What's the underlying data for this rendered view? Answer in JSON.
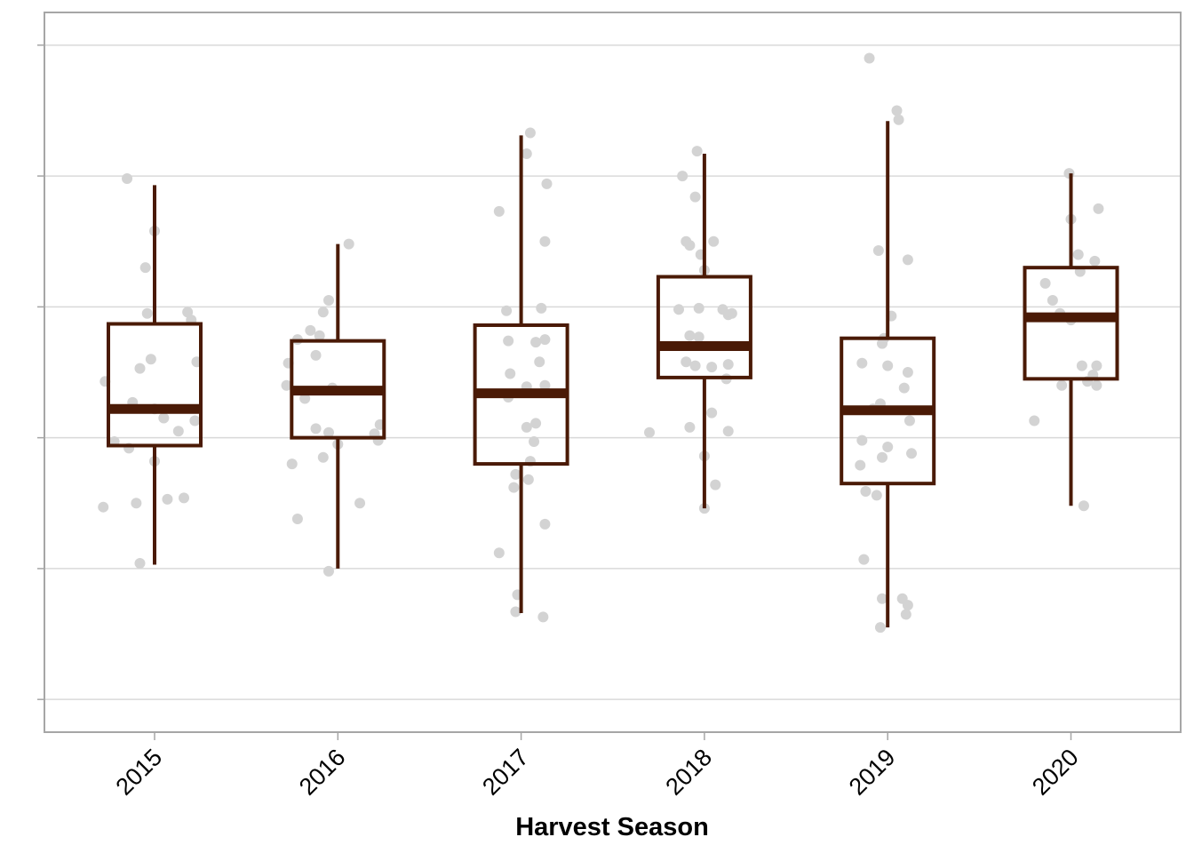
{
  "chart_data": {
    "type": "box",
    "title": "",
    "xlabel": "Harvest Season",
    "ylabel": "",
    "ylim": [
      -0.25,
      5.25
    ],
    "y_gridlines": [
      0,
      1,
      2,
      3,
      4,
      5
    ],
    "y_tick_labels_shown": false,
    "grid": "horizontal",
    "colors": {
      "box": "#4a1a06",
      "points": "#d3d3d3",
      "grid": "#d9d9d9",
      "frame": "#a6a6a6"
    },
    "categories": [
      "2015",
      "2016",
      "2017",
      "2018",
      "2019",
      "2020"
    ],
    "boxes": [
      {
        "category": "2015",
        "whisker_low": 1.03,
        "q1": 1.94,
        "median": 2.22,
        "q3": 2.87,
        "whisker_high": 3.93
      },
      {
        "category": "2016",
        "whisker_low": 1.0,
        "q1": 2.0,
        "median": 2.36,
        "q3": 2.74,
        "whisker_high": 3.48
      },
      {
        "category": "2017",
        "whisker_low": 0.66,
        "q1": 1.8,
        "median": 2.34,
        "q3": 2.86,
        "whisker_high": 4.31
      },
      {
        "category": "2018",
        "whisker_low": 1.46,
        "q1": 2.46,
        "median": 2.7,
        "q3": 3.23,
        "whisker_high": 4.17
      },
      {
        "category": "2019",
        "whisker_low": 0.55,
        "q1": 1.65,
        "median": 2.21,
        "q3": 2.76,
        "whisker_high": 4.42
      },
      {
        "category": "2020",
        "whisker_low": 1.48,
        "q1": 2.45,
        "median": 2.92,
        "q3": 3.3,
        "whisker_high": 4.02
      }
    ],
    "points": [
      {
        "category": "2015",
        "offset": -0.15,
        "y": 3.98
      },
      {
        "category": "2015",
        "offset": 0.0,
        "y": 3.58
      },
      {
        "category": "2015",
        "offset": -0.05,
        "y": 3.3
      },
      {
        "category": "2015",
        "offset": -0.04,
        "y": 2.95
      },
      {
        "category": "2015",
        "offset": 0.18,
        "y": 2.96
      },
      {
        "category": "2015",
        "offset": 0.2,
        "y": 2.9
      },
      {
        "category": "2015",
        "offset": -0.02,
        "y": 2.6
      },
      {
        "category": "2015",
        "offset": 0.23,
        "y": 2.58
      },
      {
        "category": "2015",
        "offset": -0.08,
        "y": 2.53
      },
      {
        "category": "2015",
        "offset": -0.27,
        "y": 2.43
      },
      {
        "category": "2015",
        "offset": -0.12,
        "y": 2.27
      },
      {
        "category": "2015",
        "offset": 0.0,
        "y": 2.22
      },
      {
        "category": "2015",
        "offset": 0.05,
        "y": 2.15
      },
      {
        "category": "2015",
        "offset": 0.22,
        "y": 2.13
      },
      {
        "category": "2015",
        "offset": 0.13,
        "y": 2.05
      },
      {
        "category": "2015",
        "offset": -0.22,
        "y": 1.97
      },
      {
        "category": "2015",
        "offset": -0.14,
        "y": 1.92
      },
      {
        "category": "2015",
        "offset": 0.0,
        "y": 1.82
      },
      {
        "category": "2015",
        "offset": 0.07,
        "y": 1.53
      },
      {
        "category": "2015",
        "offset": 0.16,
        "y": 1.54
      },
      {
        "category": "2015",
        "offset": -0.1,
        "y": 1.5
      },
      {
        "category": "2015",
        "offset": -0.28,
        "y": 1.47
      },
      {
        "category": "2015",
        "offset": -0.08,
        "y": 1.04
      },
      {
        "category": "2016",
        "offset": 0.06,
        "y": 3.48
      },
      {
        "category": "2016",
        "offset": -0.05,
        "y": 3.05
      },
      {
        "category": "2016",
        "offset": -0.08,
        "y": 2.96
      },
      {
        "category": "2016",
        "offset": -0.15,
        "y": 2.82
      },
      {
        "category": "2016",
        "offset": -0.22,
        "y": 2.75
      },
      {
        "category": "2016",
        "offset": -0.1,
        "y": 2.78
      },
      {
        "category": "2016",
        "offset": -0.12,
        "y": 2.63
      },
      {
        "category": "2016",
        "offset": -0.27,
        "y": 2.57
      },
      {
        "category": "2016",
        "offset": -0.28,
        "y": 2.4
      },
      {
        "category": "2016",
        "offset": -0.03,
        "y": 2.38
      },
      {
        "category": "2016",
        "offset": -0.18,
        "y": 2.3
      },
      {
        "category": "2016",
        "offset": 0.23,
        "y": 2.1
      },
      {
        "category": "2016",
        "offset": -0.12,
        "y": 2.07
      },
      {
        "category": "2016",
        "offset": -0.05,
        "y": 2.04
      },
      {
        "category": "2016",
        "offset": 0.2,
        "y": 2.03
      },
      {
        "category": "2016",
        "offset": 0.22,
        "y": 1.98
      },
      {
        "category": "2016",
        "offset": 0.0,
        "y": 1.95
      },
      {
        "category": "2016",
        "offset": -0.08,
        "y": 1.85
      },
      {
        "category": "2016",
        "offset": -0.25,
        "y": 1.8
      },
      {
        "category": "2016",
        "offset": 0.12,
        "y": 1.5
      },
      {
        "category": "2016",
        "offset": -0.22,
        "y": 1.38
      },
      {
        "category": "2016",
        "offset": -0.05,
        "y": 0.98
      },
      {
        "category": "2017",
        "offset": 0.05,
        "y": 4.33
      },
      {
        "category": "2017",
        "offset": 0.03,
        "y": 4.17
      },
      {
        "category": "2017",
        "offset": 0.14,
        "y": 3.94
      },
      {
        "category": "2017",
        "offset": -0.12,
        "y": 3.73
      },
      {
        "category": "2017",
        "offset": 0.13,
        "y": 3.5
      },
      {
        "category": "2017",
        "offset": -0.08,
        "y": 2.97
      },
      {
        "category": "2017",
        "offset": 0.11,
        "y": 2.99
      },
      {
        "category": "2017",
        "offset": -0.07,
        "y": 2.74
      },
      {
        "category": "2017",
        "offset": 0.08,
        "y": 2.73
      },
      {
        "category": "2017",
        "offset": 0.13,
        "y": 2.75
      },
      {
        "category": "2017",
        "offset": 0.1,
        "y": 2.58
      },
      {
        "category": "2017",
        "offset": -0.06,
        "y": 2.49
      },
      {
        "category": "2017",
        "offset": 0.13,
        "y": 2.4
      },
      {
        "category": "2017",
        "offset": 0.03,
        "y": 2.39
      },
      {
        "category": "2017",
        "offset": -0.07,
        "y": 2.31
      },
      {
        "category": "2017",
        "offset": 0.08,
        "y": 2.11
      },
      {
        "category": "2017",
        "offset": 0.03,
        "y": 2.08
      },
      {
        "category": "2017",
        "offset": 0.07,
        "y": 1.97
      },
      {
        "category": "2017",
        "offset": 0.05,
        "y": 1.82
      },
      {
        "category": "2017",
        "offset": -0.03,
        "y": 1.72
      },
      {
        "category": "2017",
        "offset": 0.04,
        "y": 1.68
      },
      {
        "category": "2017",
        "offset": -0.04,
        "y": 1.62
      },
      {
        "category": "2017",
        "offset": 0.13,
        "y": 1.34
      },
      {
        "category": "2017",
        "offset": -0.12,
        "y": 1.12
      },
      {
        "category": "2017",
        "offset": -0.02,
        "y": 0.8
      },
      {
        "category": "2017",
        "offset": -0.03,
        "y": 0.67
      },
      {
        "category": "2017",
        "offset": 0.12,
        "y": 0.63
      },
      {
        "category": "2018",
        "offset": -0.04,
        "y": 4.19
      },
      {
        "category": "2018",
        "offset": -0.12,
        "y": 4.0
      },
      {
        "category": "2018",
        "offset": -0.05,
        "y": 3.84
      },
      {
        "category": "2018",
        "offset": -0.1,
        "y": 3.5
      },
      {
        "category": "2018",
        "offset": 0.05,
        "y": 3.5
      },
      {
        "category": "2018",
        "offset": -0.08,
        "y": 3.47
      },
      {
        "category": "2018",
        "offset": -0.02,
        "y": 3.4
      },
      {
        "category": "2018",
        "offset": 0.0,
        "y": 3.28
      },
      {
        "category": "2018",
        "offset": -0.14,
        "y": 2.98
      },
      {
        "category": "2018",
        "offset": -0.03,
        "y": 2.99
      },
      {
        "category": "2018",
        "offset": 0.1,
        "y": 2.98
      },
      {
        "category": "2018",
        "offset": 0.13,
        "y": 2.94
      },
      {
        "category": "2018",
        "offset": 0.15,
        "y": 2.95
      },
      {
        "category": "2018",
        "offset": -0.08,
        "y": 2.78
      },
      {
        "category": "2018",
        "offset": -0.03,
        "y": 2.77
      },
      {
        "category": "2018",
        "offset": -0.1,
        "y": 2.58
      },
      {
        "category": "2018",
        "offset": -0.05,
        "y": 2.55
      },
      {
        "category": "2018",
        "offset": 0.04,
        "y": 2.54
      },
      {
        "category": "2018",
        "offset": 0.13,
        "y": 2.56
      },
      {
        "category": "2018",
        "offset": 0.12,
        "y": 2.45
      },
      {
        "category": "2018",
        "offset": 0.04,
        "y": 2.19
      },
      {
        "category": "2018",
        "offset": -0.08,
        "y": 2.08
      },
      {
        "category": "2018",
        "offset": -0.3,
        "y": 2.04
      },
      {
        "category": "2018",
        "offset": 0.13,
        "y": 2.05
      },
      {
        "category": "2018",
        "offset": 0.0,
        "y": 1.86
      },
      {
        "category": "2018",
        "offset": 0.06,
        "y": 1.64
      },
      {
        "category": "2018",
        "offset": 0.0,
        "y": 1.46
      },
      {
        "category": "2019",
        "offset": -0.1,
        "y": 4.9
      },
      {
        "category": "2019",
        "offset": 0.05,
        "y": 4.5
      },
      {
        "category": "2019",
        "offset": 0.06,
        "y": 4.43
      },
      {
        "category": "2019",
        "offset": -0.05,
        "y": 3.43
      },
      {
        "category": "2019",
        "offset": 0.11,
        "y": 3.36
      },
      {
        "category": "2019",
        "offset": 0.02,
        "y": 2.93
      },
      {
        "category": "2019",
        "offset": -0.02,
        "y": 2.76
      },
      {
        "category": "2019",
        "offset": -0.03,
        "y": 2.72
      },
      {
        "category": "2019",
        "offset": -0.14,
        "y": 2.57
      },
      {
        "category": "2019",
        "offset": 0.0,
        "y": 2.55
      },
      {
        "category": "2019",
        "offset": 0.11,
        "y": 2.5
      },
      {
        "category": "2019",
        "offset": 0.09,
        "y": 2.38
      },
      {
        "category": "2019",
        "offset": -0.04,
        "y": 2.26
      },
      {
        "category": "2019",
        "offset": -0.08,
        "y": 2.22
      },
      {
        "category": "2019",
        "offset": 0.12,
        "y": 2.13
      },
      {
        "category": "2019",
        "offset": -0.14,
        "y": 1.98
      },
      {
        "category": "2019",
        "offset": 0.0,
        "y": 1.93
      },
      {
        "category": "2019",
        "offset": 0.13,
        "y": 1.88
      },
      {
        "category": "2019",
        "offset": -0.03,
        "y": 1.85
      },
      {
        "category": "2019",
        "offset": -0.15,
        "y": 1.79
      },
      {
        "category": "2019",
        "offset": -0.12,
        "y": 1.59
      },
      {
        "category": "2019",
        "offset": -0.06,
        "y": 1.56
      },
      {
        "category": "2019",
        "offset": -0.13,
        "y": 1.07
      },
      {
        "category": "2019",
        "offset": -0.03,
        "y": 0.77
      },
      {
        "category": "2019",
        "offset": 0.08,
        "y": 0.77
      },
      {
        "category": "2019",
        "offset": 0.11,
        "y": 0.72
      },
      {
        "category": "2019",
        "offset": 0.1,
        "y": 0.65
      },
      {
        "category": "2019",
        "offset": -0.04,
        "y": 0.55
      },
      {
        "category": "2020",
        "offset": -0.01,
        "y": 4.02
      },
      {
        "category": "2020",
        "offset": 0.15,
        "y": 3.75
      },
      {
        "category": "2020",
        "offset": 0.0,
        "y": 3.67
      },
      {
        "category": "2020",
        "offset": 0.04,
        "y": 3.4
      },
      {
        "category": "2020",
        "offset": 0.13,
        "y": 3.35
      },
      {
        "category": "2020",
        "offset": 0.05,
        "y": 3.27
      },
      {
        "category": "2020",
        "offset": -0.14,
        "y": 3.18
      },
      {
        "category": "2020",
        "offset": -0.1,
        "y": 3.05
      },
      {
        "category": "2020",
        "offset": -0.06,
        "y": 2.95
      },
      {
        "category": "2020",
        "offset": 0.0,
        "y": 2.9
      },
      {
        "category": "2020",
        "offset": 0.06,
        "y": 2.55
      },
      {
        "category": "2020",
        "offset": 0.14,
        "y": 2.55
      },
      {
        "category": "2020",
        "offset": 0.12,
        "y": 2.48
      },
      {
        "category": "2020",
        "offset": 0.09,
        "y": 2.43
      },
      {
        "category": "2020",
        "offset": 0.14,
        "y": 2.4
      },
      {
        "category": "2020",
        "offset": -0.05,
        "y": 2.4
      },
      {
        "category": "2020",
        "offset": -0.2,
        "y": 2.13
      },
      {
        "category": "2020",
        "offset": 0.07,
        "y": 1.48
      }
    ]
  }
}
